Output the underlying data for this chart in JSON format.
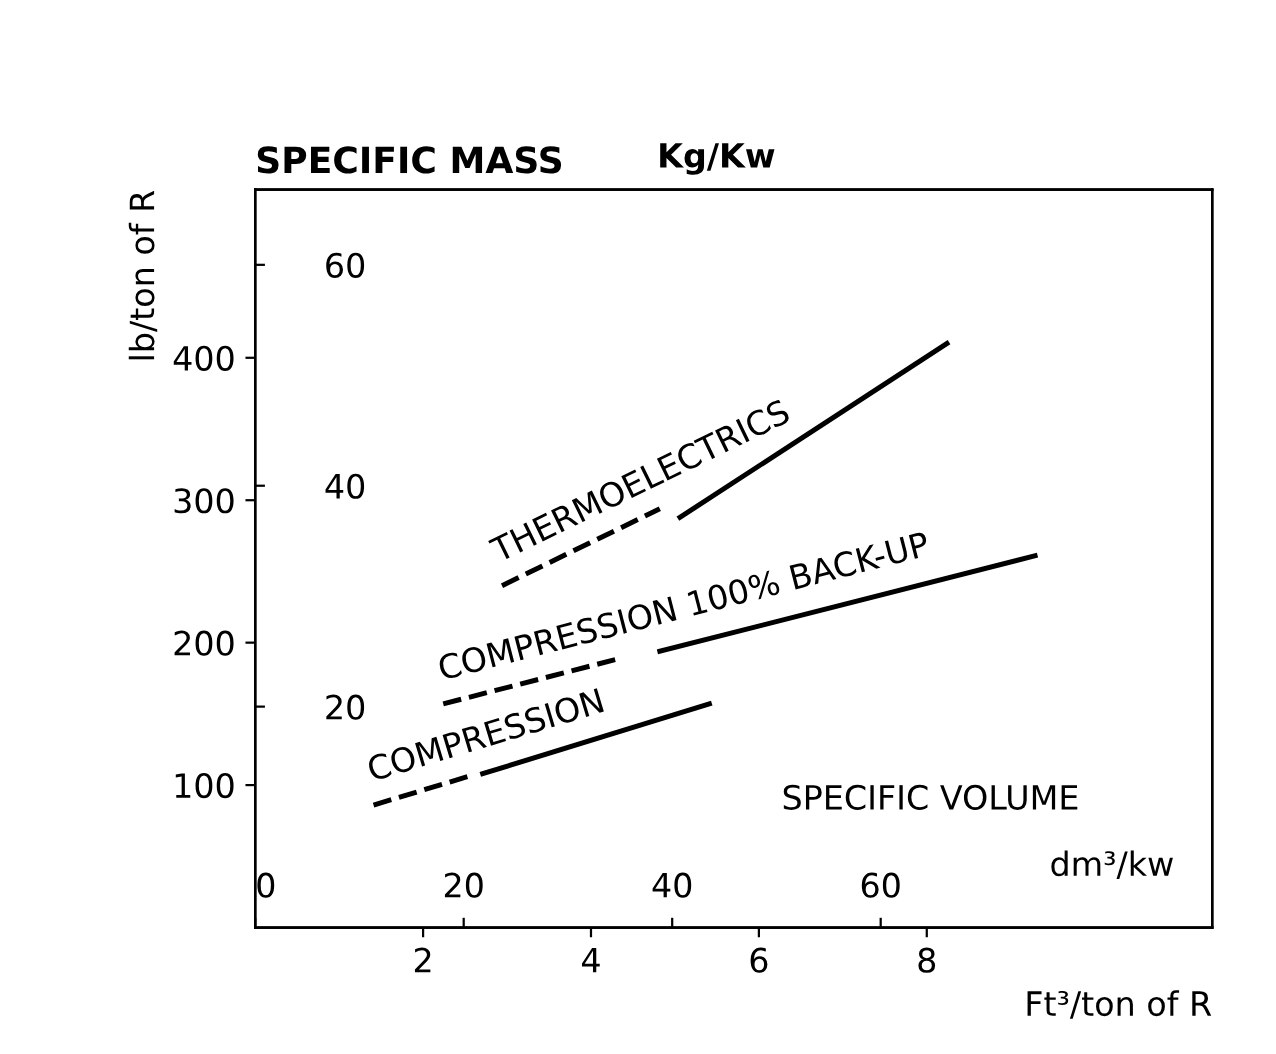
{
  "chart_data": {
    "type": "line",
    "title": "SPECIFIC MASS",
    "y2label": "Kg/Kw",
    "xlabel": "Ft³/ton of R",
    "ylabel": "lb/ton of R",
    "x2label": "dm³/kw",
    "annotations": [
      "SPECIFIC VOLUME"
    ],
    "xlim": [
      0,
      11.4
    ],
    "ylim": [
      0,
      518
    ],
    "xticks": [
      2,
      4,
      6,
      8
    ],
    "yticks": [
      100,
      200,
      300,
      400
    ],
    "x2lim": [
      0,
      91.8
    ],
    "x2ticks": [
      0,
      20,
      40,
      60
    ],
    "y2lim": [
      0,
      66.8
    ],
    "y2ticks": [
      20,
      40,
      60
    ],
    "grid": false,
    "series": [
      {
        "name": "THERMOELECTRICS",
        "color": "#000000",
        "line_style": "dashed",
        "x": [
          2.94,
          4.82
        ],
        "values": [
          240,
          294
        ]
      },
      {
        "color": "#000000",
        "line_style": "solid",
        "x": [
          5.06,
          8.24
        ],
        "values": [
          288,
          410
        ]
      },
      {
        "name": "COMPRESSION 100% BACK-UP",
        "color": "#000000",
        "line_style": "dashed",
        "x": [
          2.24,
          4.35
        ],
        "values": [
          157,
          189
        ]
      },
      {
        "color": "#000000",
        "line_style": "solid",
        "x": [
          4.82,
          9.29
        ],
        "values": [
          194,
          261
        ]
      },
      {
        "name": "COMPRESSION",
        "color": "#000000",
        "line_style": "dashed",
        "x": [
          1.41,
          2.59
        ],
        "values": [
          86,
          107
        ]
      },
      {
        "color": "#000000",
        "line_style": "solid",
        "x": [
          2.71,
          5.41
        ],
        "values": [
          108,
          157
        ]
      }
    ]
  }
}
